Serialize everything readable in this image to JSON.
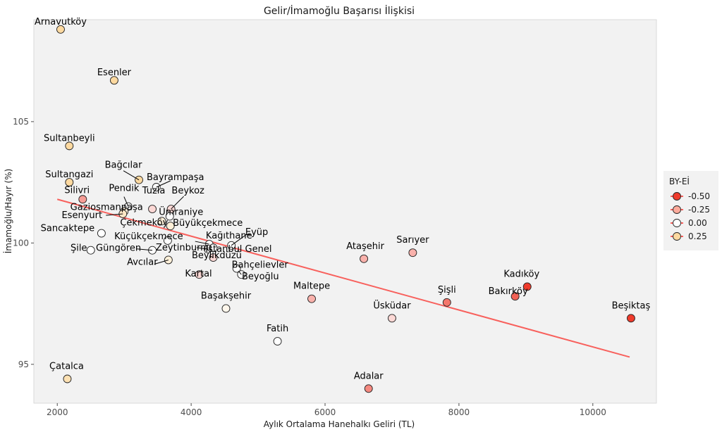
{
  "chart_data": {
    "type": "scatter",
    "title": "Gelir/İmamoğlu Başarısı İlişkisi",
    "xlabel": "Aylık Ortalama Hanehalkı Geliri (TL)",
    "ylabel": "İmamoğlu/Hayır (%)",
    "xlim": [
      1650,
      10950
    ],
    "ylim": [
      93.4,
      109.2
    ],
    "xticks": [
      2000,
      4000,
      6000,
      8000,
      10000
    ],
    "yticks": [
      95,
      100,
      105
    ],
    "legend": {
      "title": "BY-Eİ",
      "placement": "right",
      "entries": [
        {
          "label": "-0.50",
          "color": "#ef3b2c"
        },
        {
          "label": "-0.25",
          "color": "#fcab9c"
        },
        {
          "label": "0.00",
          "color": "#ffffff"
        },
        {
          "label": "0.25",
          "color": "#fdd9a0"
        }
      ]
    },
    "trend_line": {
      "x": [
        2000,
        10550
      ],
      "y": [
        101.8,
        95.3
      ],
      "color": "#f8605c"
    },
    "points": [
      {
        "label": "Arnavutköy",
        "x": 2050,
        "y": 108.8,
        "c": 0.25
      },
      {
        "label": "Esenler",
        "x": 2850,
        "y": 106.7,
        "c": 0.25
      },
      {
        "label": "Sultanbeyli",
        "x": 2180,
        "y": 104.0,
        "c": 0.25
      },
      {
        "label": "Sultangazi",
        "x": 2180,
        "y": 102.5,
        "c": 0.25
      },
      {
        "label": "Bağcılar",
        "x": 3220,
        "y": 102.6,
        "c": 0.25
      },
      {
        "label": "Bayrampaşa",
        "x": 3480,
        "y": 102.3,
        "c": 0.0
      },
      {
        "label": "Silivri",
        "x": 2380,
        "y": 101.8,
        "c": -0.25
      },
      {
        "label": "Pendik",
        "x": 3060,
        "y": 101.5,
        "c": 0.0
      },
      {
        "label": "Tuzla",
        "x": 3420,
        "y": 101.4,
        "c": -0.1
      },
      {
        "label": "Beykoz",
        "x": 3700,
        "y": 101.4,
        "c": -0.1
      },
      {
        "label": "Gaziosmanpaşa",
        "x": 3000,
        "y": 101.3,
        "c": 0.1
      },
      {
        "label": "Ümraniye",
        "x": 3680,
        "y": 101.1,
        "c": 0.0
      },
      {
        "label": "Esenyurt",
        "x": 2980,
        "y": 101.2,
        "c": 0.15
      },
      {
        "label": "Çekmeköy",
        "x": 3560,
        "y": 100.9,
        "c": 0.1
      },
      {
        "label": "Büyükçekmece",
        "x": 3690,
        "y": 100.7,
        "c": 0.1
      },
      {
        "label": "Sancaktepe",
        "x": 2660,
        "y": 100.4,
        "c": 0.0
      },
      {
        "label": "Küçükçekmece",
        "x": 3650,
        "y": 100.1,
        "c": 0.0
      },
      {
        "label": "Kağıthane",
        "x": 4270,
        "y": 99.95,
        "c": 0.0
      },
      {
        "label": "Eyüp",
        "x": 4600,
        "y": 99.9,
        "c": 0.0
      },
      {
        "label": "Şile",
        "x": 2500,
        "y": 99.7,
        "c": 0.0
      },
      {
        "label": "Güngören",
        "x": 3420,
        "y": 99.7,
        "c": 0.0
      },
      {
        "label": "Zeytinburnu",
        "x": 4250,
        "y": 99.75,
        "c": 0.0
      },
      {
        "label": "İstanbul Genel",
        "x": 4330,
        "y": 99.8,
        "c": 0.0
      },
      {
        "label": "Avcılar",
        "x": 3660,
        "y": 99.3,
        "c": 0.1
      },
      {
        "label": "Beylikdüzü",
        "x": 4330,
        "y": 99.4,
        "c": -0.1
      },
      {
        "label": "Bahçelievler",
        "x": 4680,
        "y": 98.95,
        "c": 0.0
      },
      {
        "label": "Kartal",
        "x": 4120,
        "y": 98.7,
        "c": -0.1
      },
      {
        "label": "Beyoğlu",
        "x": 4750,
        "y": 98.7,
        "c": 0.0
      },
      {
        "label": "Ataşehir",
        "x": 6580,
        "y": 99.35,
        "c": -0.2
      },
      {
        "label": "Sarıyer",
        "x": 7310,
        "y": 99.6,
        "c": -0.2
      },
      {
        "label": "Maltepe",
        "x": 5800,
        "y": 97.7,
        "c": -0.2
      },
      {
        "label": "Başakşehir",
        "x": 4520,
        "y": 97.3,
        "c": 0.05
      },
      {
        "label": "Üsküdar",
        "x": 7000,
        "y": 96.9,
        "c": -0.1
      },
      {
        "label": "Şişli",
        "x": 7820,
        "y": 97.55,
        "c": -0.35
      },
      {
        "label": "Kadıköy",
        "x": 9020,
        "y": 98.2,
        "c": -0.5
      },
      {
        "label": "Bakırköy",
        "x": 8840,
        "y": 97.8,
        "c": -0.4
      },
      {
        "label": "Beşiktaş",
        "x": 10570,
        "y": 96.9,
        "c": -0.5
      },
      {
        "label": "Fatih",
        "x": 5290,
        "y": 95.95,
        "c": 0.0
      },
      {
        "label": "Çatalca",
        "x": 2150,
        "y": 94.4,
        "c": 0.2
      },
      {
        "label": "Adalar",
        "x": 6650,
        "y": 94.0,
        "c": -0.3
      }
    ]
  }
}
